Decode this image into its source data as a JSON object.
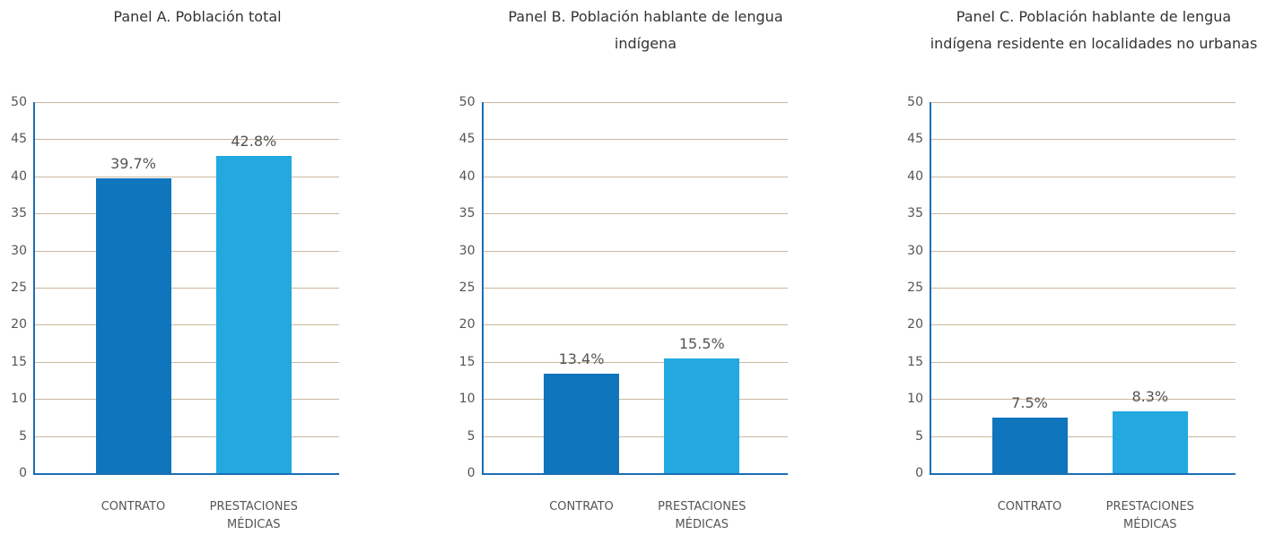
{
  "chart_data": [
    {
      "type": "bar",
      "title": "Panel A. Población total",
      "categories": [
        "CONTRATO",
        "PRESTACIONES MÉDICAS"
      ],
      "values": [
        39.7,
        42.8
      ],
      "value_labels": [
        "39.7%",
        "42.8%"
      ],
      "colors": [
        "#0f75bc",
        "#23a8e0"
      ],
      "ylim": [
        0,
        50
      ],
      "yticks": [
        0,
        5,
        10,
        15,
        20,
        25,
        30,
        35,
        40,
        45,
        50
      ],
      "grid": true
    },
    {
      "type": "bar",
      "title": "Panel B. Población hablante de lengua indígena",
      "categories": [
        "CONTRATO",
        "PRESTACIONES MÉDICAS"
      ],
      "values": [
        13.4,
        15.5
      ],
      "value_labels": [
        "13.4%",
        "15.5%"
      ],
      "colors": [
        "#0f75bc",
        "#23a8e0"
      ],
      "ylim": [
        0,
        50
      ],
      "yticks": [
        0,
        5,
        10,
        15,
        20,
        25,
        30,
        35,
        40,
        45,
        50
      ],
      "grid": true
    },
    {
      "type": "bar",
      "title": "Panel C. Población hablante de lengua indígena residente en localidades no urbanas",
      "categories": [
        "CONTRATO",
        "PRESTACIONES MÉDICAS"
      ],
      "values": [
        7.5,
        8.3
      ],
      "value_labels": [
        "7.5%",
        "8.3%"
      ],
      "colors": [
        "#0f75bc",
        "#23a8e0"
      ],
      "ylim": [
        0,
        50
      ],
      "yticks": [
        0,
        5,
        10,
        15,
        20,
        25,
        30,
        35,
        40,
        45,
        50
      ],
      "grid": true
    }
  ]
}
